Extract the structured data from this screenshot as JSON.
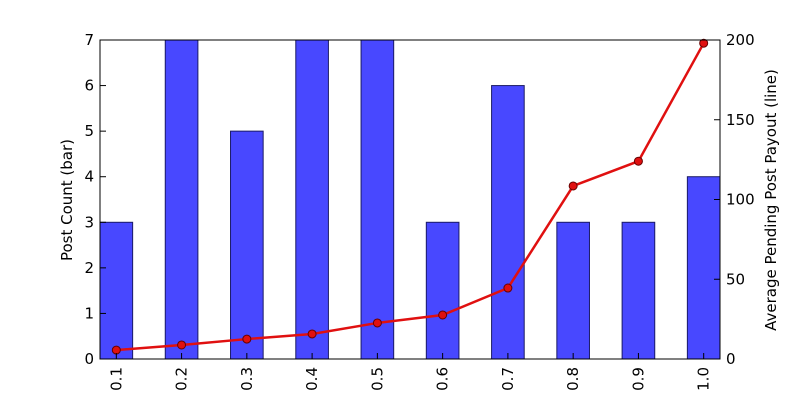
{
  "chart_data": {
    "type": "bar_line",
    "categories": [
      "0.1",
      "0.2",
      "0.3",
      "0.4",
      "0.5",
      "0.6",
      "0.7",
      "0.8",
      "0.9",
      "1.0"
    ],
    "y_label": "Post Count (bar)",
    "y2_label": "Average Pending Post Payout (line)",
    "series": [
      {
        "name": "Post Count",
        "type": "bar",
        "color": "#4848ff",
        "values": [
          3,
          7,
          5,
          7,
          7,
          3,
          6,
          3,
          3,
          4
        ]
      },
      {
        "name": "Average Pending Post Payout",
        "type": "line",
        "axis": "y2",
        "color": "#e01010",
        "values": [
          5.6,
          8.8,
          12.5,
          15.7,
          22.6,
          27.6,
          44.5,
          108.5,
          124,
          198
        ]
      }
    ],
    "ylim": [
      0,
      7
    ],
    "yticks": [
      0,
      1,
      2,
      3,
      4,
      5,
      6,
      7
    ],
    "y2lim": [
      0,
      200
    ],
    "y2ticks": [
      0,
      50,
      100,
      150,
      200
    ]
  }
}
